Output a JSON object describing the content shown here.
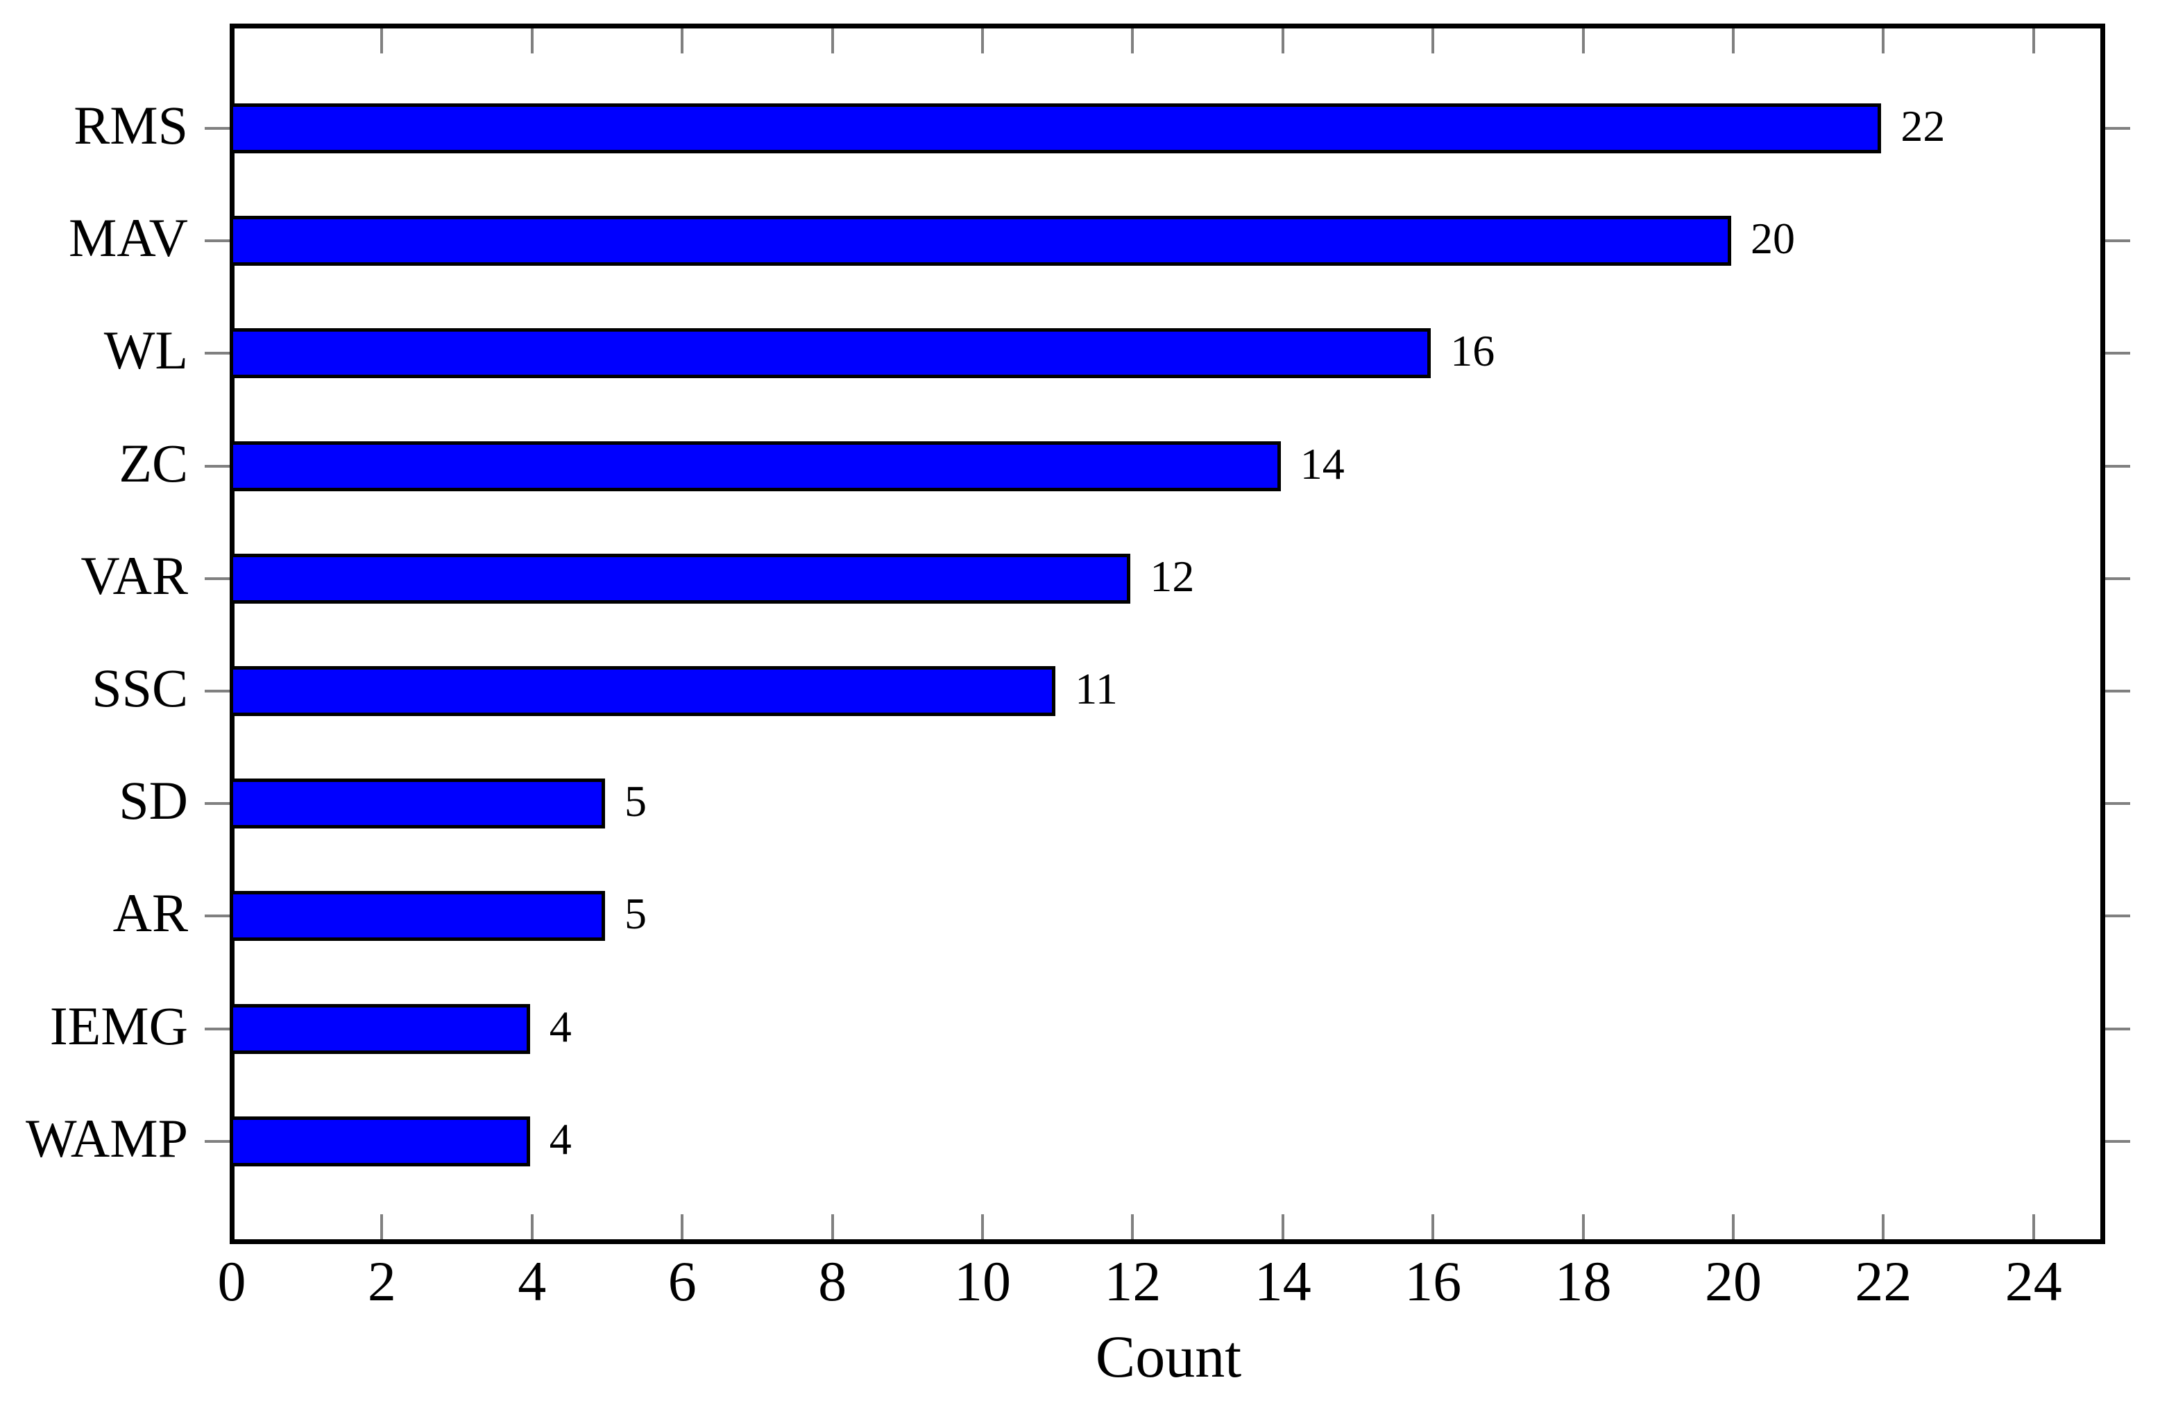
{
  "chart_data": {
    "type": "bar",
    "orientation": "horizontal",
    "title": "",
    "xlabel": "Count",
    "ylabel": "",
    "categories": [
      "RMS",
      "MAV",
      "WL",
      "ZC",
      "VAR",
      "SSC",
      "SD",
      "AR",
      "IEMG",
      "WAMP"
    ],
    "values": [
      22,
      20,
      16,
      14,
      12,
      11,
      5,
      5,
      4,
      4
    ],
    "value_labels": [
      "22",
      "20",
      "16",
      "14",
      "12",
      "11",
      "5",
      "5",
      "4",
      "4"
    ],
    "xlim": [
      0,
      25
    ],
    "xticks": [
      0,
      2,
      4,
      6,
      8,
      10,
      12,
      14,
      16,
      18,
      20,
      22,
      24
    ],
    "grid": false,
    "legend": null,
    "colors": {
      "bar_fill": "#0000ff",
      "bar_border": "#000000",
      "frame": "#000000",
      "tick": "#808080",
      "text": "#000000",
      "background": "#ffffff"
    }
  }
}
